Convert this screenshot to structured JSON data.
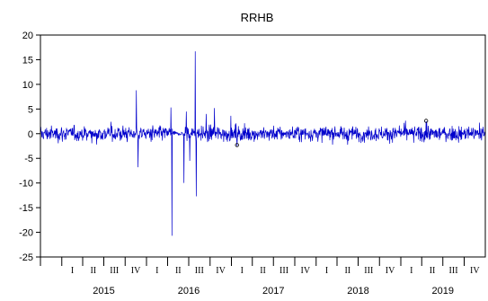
{
  "chart_data": {
    "type": "line",
    "title": "RRHB",
    "xlabel": "",
    "ylabel": "",
    "ylim": [
      -25,
      20
    ],
    "y_ticks": [
      -25,
      -20,
      -15,
      -10,
      -5,
      0,
      5,
      10,
      15,
      20
    ],
    "x_range": [
      "2014-10-01",
      "2019-12-31"
    ],
    "year_labels": [
      "2015",
      "2016",
      "2017",
      "2018",
      "2019"
    ],
    "quarter_labels": [
      "I",
      "II",
      "III",
      "IV"
    ],
    "grid": false,
    "legend": "none",
    "series_color": "#0000CC",
    "series": [
      {
        "noise_amplitude": 1.2,
        "spikes": [
          {
            "date": "2015-11-18",
            "value": 8.8
          },
          {
            "date": "2015-11-25",
            "value": -6.8
          },
          {
            "date": "2016-04-15",
            "value": 5.3
          },
          {
            "date": "2016-04-20",
            "value": -20.7
          },
          {
            "date": "2016-06-10",
            "value": -10.0
          },
          {
            "date": "2016-06-20",
            "value": 4.5
          },
          {
            "date": "2016-07-05",
            "value": -5.5
          },
          {
            "date": "2016-07-29",
            "value": 16.7
          },
          {
            "date": "2016-08-03",
            "value": -12.7
          },
          {
            "date": "2016-09-15",
            "value": 4.0
          },
          {
            "date": "2016-10-20",
            "value": 5.2
          },
          {
            "date": "2017-01-25",
            "value": -2.5
          },
          {
            "date": "2019-04-20",
            "value": 2.5
          }
        ],
        "outlier_markers": [
          {
            "date": "2017-01-25",
            "value": -2.3
          },
          {
            "date": "2019-04-20",
            "value": 2.6
          }
        ]
      }
    ]
  }
}
